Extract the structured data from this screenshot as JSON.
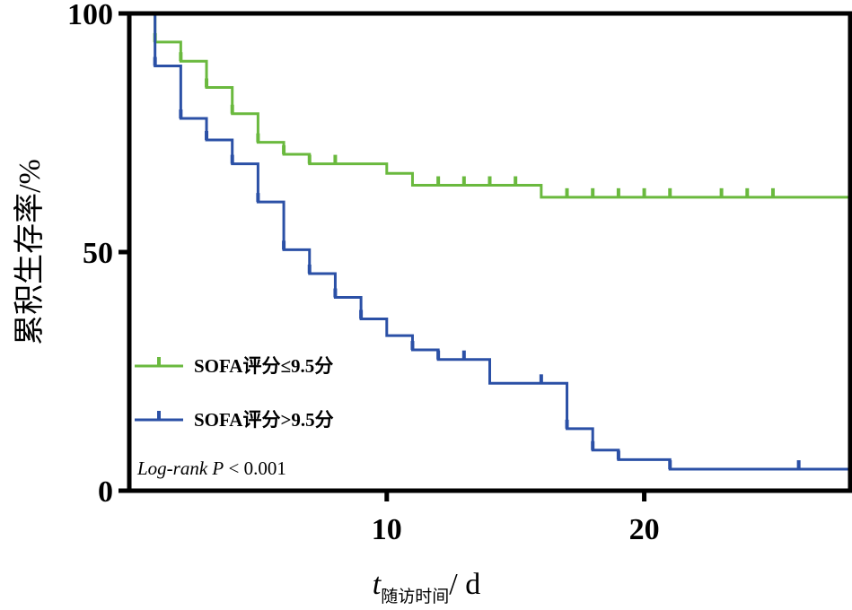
{
  "chart_data": {
    "type": "line",
    "subtype": "kaplan-meier-step",
    "ylabel": "累积生存率/%",
    "xlabel_var": "t",
    "xlabel_sub": "随访时间",
    "xlabel_unit": "/ d",
    "annotation": {
      "italic": "Log-rank P",
      "rest": "< 0.001"
    },
    "xlim": [
      0,
      28
    ],
    "ylim": [
      0,
      100
    ],
    "xticks": [
      10,
      20
    ],
    "yticks": [
      0,
      50,
      100
    ],
    "grid": false,
    "legend_position": "bottom-left",
    "series": [
      {
        "name": "SOFA评分≤9.5分",
        "color": "#6ab93e",
        "steps": [
          [
            0,
            100
          ],
          [
            1,
            94
          ],
          [
            2,
            90
          ],
          [
            3,
            84.5
          ],
          [
            4,
            79
          ],
          [
            5,
            73
          ],
          [
            6,
            70.5
          ],
          [
            7,
            68.5
          ],
          [
            10,
            66.5
          ],
          [
            11,
            64
          ],
          [
            16,
            61.5
          ],
          [
            28,
            61.5
          ]
        ],
        "censor": [
          1,
          2,
          3,
          4,
          5,
          6,
          7,
          8,
          12,
          13,
          14,
          15,
          17,
          18,
          19,
          20,
          21,
          23,
          24,
          25,
          28
        ]
      },
      {
        "name": "SOFA评分>9.5分",
        "color": "#2b50a6",
        "steps": [
          [
            0,
            100
          ],
          [
            1,
            89
          ],
          [
            2,
            78
          ],
          [
            3,
            73.5
          ],
          [
            4,
            68.5
          ],
          [
            5,
            60.5
          ],
          [
            6,
            50.5
          ],
          [
            7,
            45.5
          ],
          [
            8,
            40.5
          ],
          [
            9,
            36
          ],
          [
            10,
            32.5
          ],
          [
            11,
            29.5
          ],
          [
            12,
            27.5
          ],
          [
            14,
            22.5
          ],
          [
            17,
            13
          ],
          [
            18,
            8.5
          ],
          [
            19,
            6.5
          ],
          [
            21,
            4.5
          ],
          [
            28,
            4.5
          ]
        ],
        "censor": [
          1,
          2,
          3,
          4,
          5,
          6,
          7,
          8,
          9,
          11,
          12,
          13,
          16,
          17,
          18,
          19,
          21,
          26,
          28
        ]
      }
    ]
  }
}
